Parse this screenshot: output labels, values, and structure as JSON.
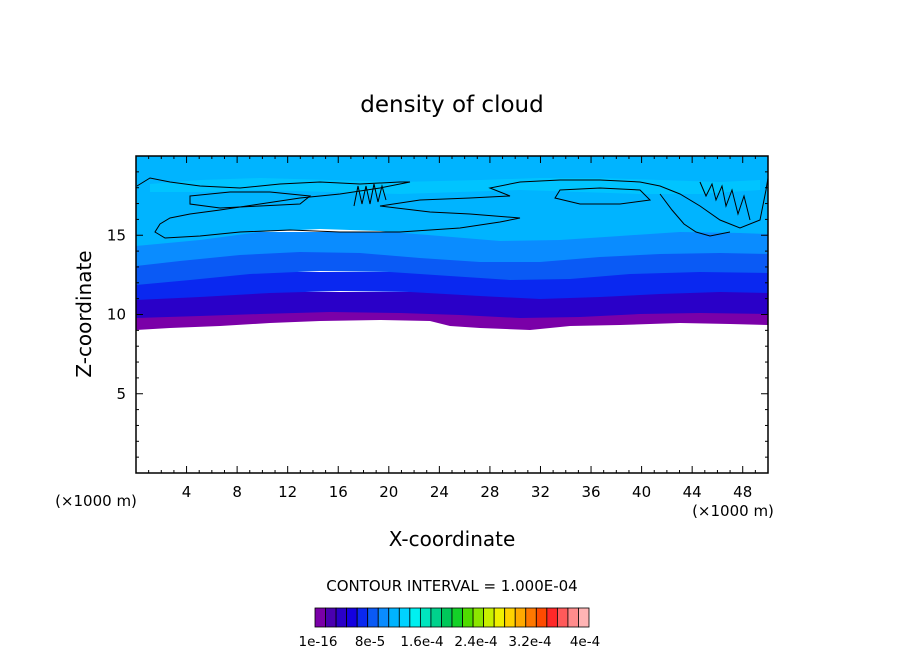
{
  "chart_data": {
    "type": "heatmap",
    "title": "density of cloud",
    "xlabel": "X-coordinate",
    "ylabel": "Z-coordinate",
    "x_unit": "(×1000 m)",
    "y_unit": "(×1000 m)",
    "xlim": [
      0,
      50
    ],
    "ylim": [
      0,
      20
    ],
    "x_ticks": [
      4,
      8,
      12,
      16,
      20,
      24,
      28,
      32,
      36,
      40,
      44,
      48
    ],
    "y_ticks": [
      5,
      10,
      15
    ],
    "contour_interval_text": "CONTOUR INTERVAL = 1.000E-04",
    "colorbar": {
      "colors": [
        "#7a00a8",
        "#4a00b0",
        "#2a00c8",
        "#1400e0",
        "#0a28f0",
        "#0a5af5",
        "#0a8cff",
        "#00b4ff",
        "#00d2ff",
        "#00f0f0",
        "#00e6be",
        "#00d28c",
        "#00c85a",
        "#14d228",
        "#50dc00",
        "#8ce600",
        "#c8f000",
        "#f0f000",
        "#ffd200",
        "#ffaa00",
        "#ff7800",
        "#ff4b00",
        "#ff2828",
        "#ff5a5a",
        "#ff8c8c",
        "#ffb4b4"
      ],
      "labels": [
        "1e-16",
        "8e-5",
        "1.6e-4",
        "2.4e-4",
        "3.2e-4",
        "4e-4"
      ]
    },
    "layers": [
      {
        "level": "1e-16",
        "color": "#7a00a8",
        "z_range": [
          9.2,
          10.2
        ]
      },
      {
        "level": "2e-5",
        "color": "#2a00c8",
        "z_range": [
          10.2,
          11.5
        ]
      },
      {
        "level": "4e-5",
        "color": "#0a28f0",
        "z_range": [
          11.5,
          12.6
        ]
      },
      {
        "level": "6e-5",
        "color": "#0a8cff",
        "z_range": [
          12.6,
          14.2
        ]
      },
      {
        "level": "8e-5",
        "color": "#00b4ff",
        "z_range": [
          14.2,
          19.8
        ]
      }
    ]
  }
}
